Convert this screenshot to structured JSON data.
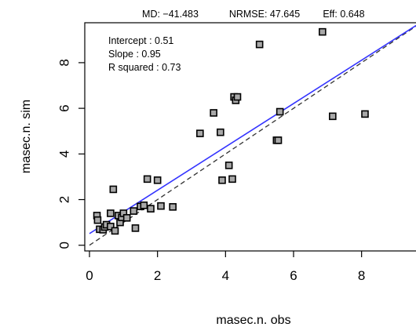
{
  "chart_data": {
    "type": "scatter",
    "stats": {
      "md": "MD: −41.483",
      "nrmse": "NRMSE: 47.645",
      "eff": "Eff: 0.648"
    },
    "xlabel": "masec.n. obs",
    "ylabel": "masec.n. sim",
    "xlim": [
      0,
      9.6
    ],
    "ylim": [
      -0.25,
      9.75
    ],
    "x_ticks": [
      0,
      2,
      4,
      6,
      8
    ],
    "y_ticks": [
      0,
      2,
      4,
      6,
      8
    ],
    "x_tick_labels": [
      "0",
      "2",
      "4",
      "6",
      "8"
    ],
    "y_tick_labels": [
      "0",
      "2",
      "4",
      "6",
      "8"
    ],
    "fit": {
      "intercept": 0.51,
      "slope": 0.95,
      "intercept_text": "Intercept : 0.51",
      "slope_text": "Slope : 0.95",
      "r2_text": "R squared : 0.73",
      "color": "#3333ff"
    },
    "identity_line": {
      "style": "dashed",
      "color": "#333333"
    },
    "marker": {
      "shape": "square",
      "fill": "#a8a8a8",
      "stroke": "#000000"
    },
    "points": [
      {
        "x": 0.22,
        "y": 1.3
      },
      {
        "x": 0.24,
        "y": 1.1
      },
      {
        "x": 0.3,
        "y": 0.7
      },
      {
        "x": 0.4,
        "y": 0.68
      },
      {
        "x": 0.45,
        "y": 0.8
      },
      {
        "x": 0.5,
        "y": 0.9
      },
      {
        "x": 0.62,
        "y": 1.4
      },
      {
        "x": 0.62,
        "y": 0.82
      },
      {
        "x": 0.7,
        "y": 2.45
      },
      {
        "x": 0.75,
        "y": 0.63
      },
      {
        "x": 0.85,
        "y": 1.3
      },
      {
        "x": 0.9,
        "y": 1.0
      },
      {
        "x": 0.95,
        "y": 1.22
      },
      {
        "x": 1.0,
        "y": 1.4
      },
      {
        "x": 1.1,
        "y": 1.2
      },
      {
        "x": 1.3,
        "y": 1.5
      },
      {
        "x": 1.35,
        "y": 0.75
      },
      {
        "x": 1.5,
        "y": 1.7
      },
      {
        "x": 1.6,
        "y": 1.75
      },
      {
        "x": 1.7,
        "y": 2.9
      },
      {
        "x": 1.8,
        "y": 1.6
      },
      {
        "x": 2.0,
        "y": 2.85
      },
      {
        "x": 2.1,
        "y": 1.72
      },
      {
        "x": 2.45,
        "y": 1.68
      },
      {
        "x": 3.25,
        "y": 4.9
      },
      {
        "x": 3.65,
        "y": 5.8
      },
      {
        "x": 3.85,
        "y": 4.95
      },
      {
        "x": 3.9,
        "y": 2.85
      },
      {
        "x": 4.1,
        "y": 3.5
      },
      {
        "x": 4.2,
        "y": 2.9
      },
      {
        "x": 4.25,
        "y": 6.5
      },
      {
        "x": 4.3,
        "y": 6.35
      },
      {
        "x": 4.35,
        "y": 6.5
      },
      {
        "x": 5.0,
        "y": 8.8
      },
      {
        "x": 5.5,
        "y": 4.6
      },
      {
        "x": 5.55,
        "y": 4.6
      },
      {
        "x": 5.6,
        "y": 5.85
      },
      {
        "x": 6.85,
        "y": 9.35
      },
      {
        "x": 7.15,
        "y": 5.65
      },
      {
        "x": 8.1,
        "y": 5.75
      }
    ]
  }
}
